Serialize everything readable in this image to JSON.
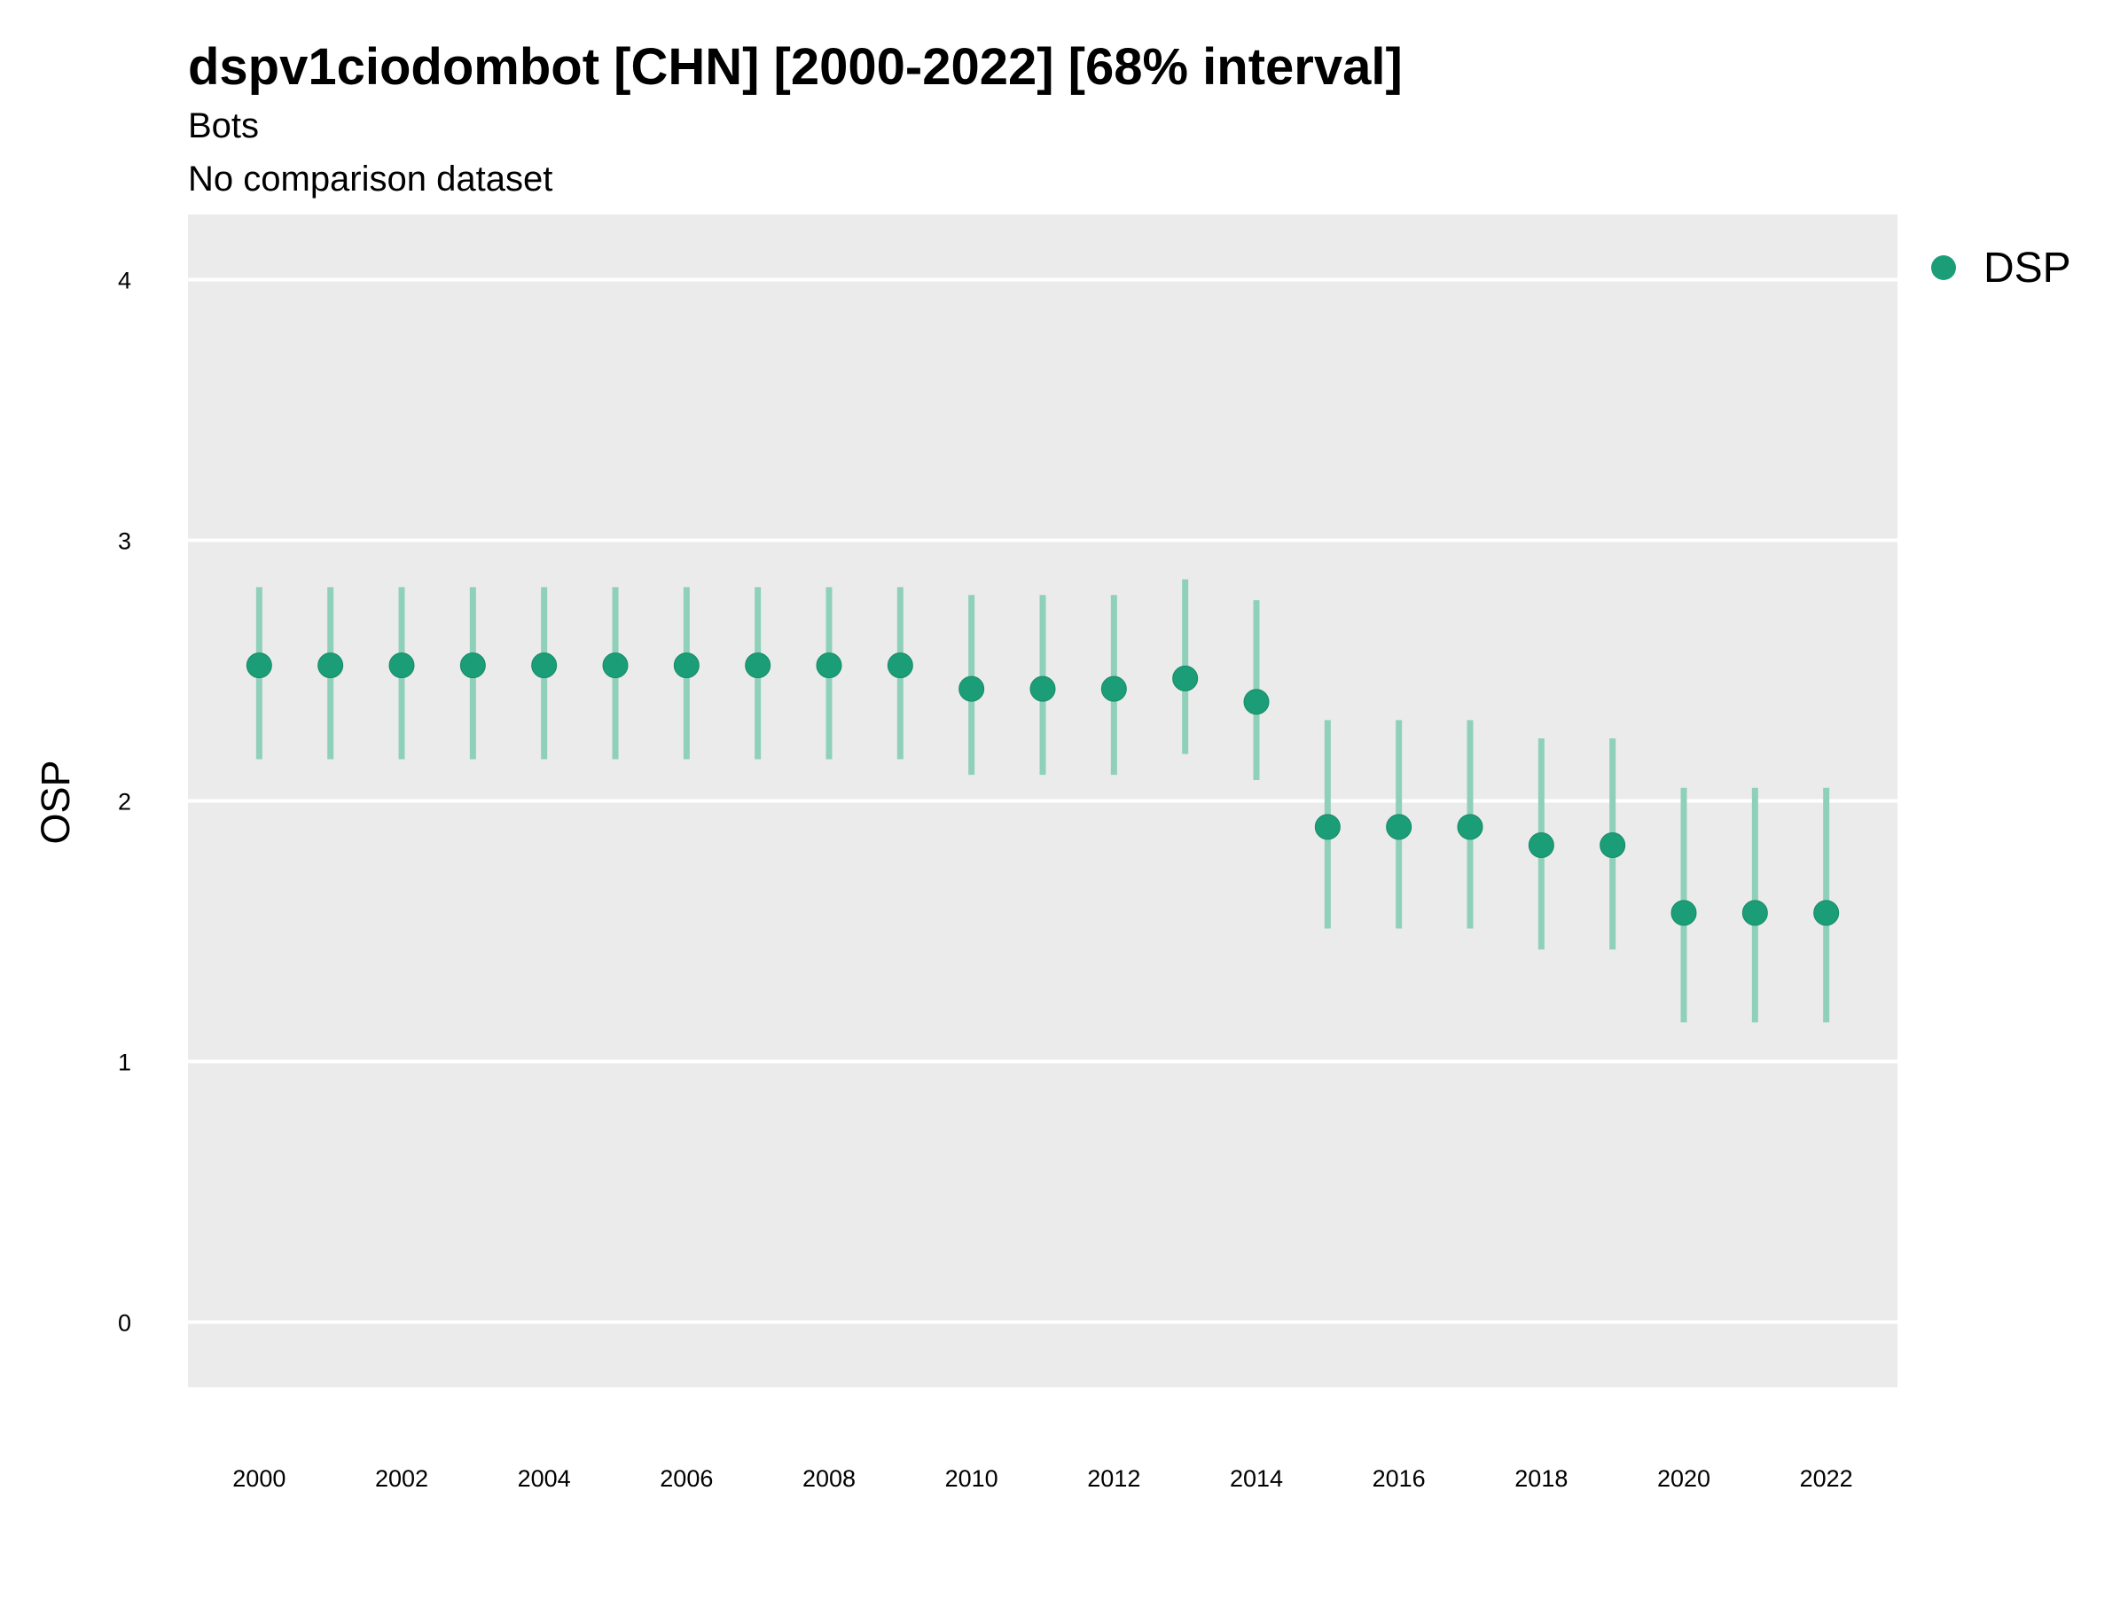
{
  "chart_data": {
    "type": "scatter",
    "title": "dspv1ciodombot [CHN] [2000-2022] [68% interval]",
    "subtitle": "Bots",
    "caption_line": "No comparison dataset",
    "xlabel": "",
    "ylabel": "OSP",
    "ylim": [
      -0.25,
      4.25
    ],
    "yticks": [
      0,
      1,
      2,
      3,
      4
    ],
    "xlim": [
      1999,
      2023
    ],
    "xticks": [
      2000,
      2002,
      2004,
      2006,
      2008,
      2010,
      2012,
      2014,
      2016,
      2018,
      2020,
      2022
    ],
    "grid": true,
    "legend": {
      "position": "right",
      "entries": [
        "DSP"
      ]
    },
    "colors": {
      "series": "#1b9e77",
      "interval": "#8fd0bb",
      "panel": "#ebebeb",
      "grid": "#ffffff"
    },
    "series": [
      {
        "name": "DSP",
        "x": [
          2000,
          2001,
          2002,
          2003,
          2004,
          2005,
          2006,
          2007,
          2008,
          2009,
          2010,
          2011,
          2012,
          2013,
          2014,
          2015,
          2016,
          2017,
          2018,
          2019,
          2020,
          2021,
          2022
        ],
        "y": [
          2.52,
          2.52,
          2.52,
          2.52,
          2.52,
          2.52,
          2.52,
          2.52,
          2.52,
          2.52,
          2.43,
          2.43,
          2.43,
          2.47,
          2.38,
          1.9,
          1.9,
          1.9,
          1.83,
          1.83,
          1.57,
          1.57,
          1.57
        ],
        "lower": [
          2.16,
          2.16,
          2.16,
          2.16,
          2.16,
          2.16,
          2.16,
          2.16,
          2.16,
          2.16,
          2.1,
          2.1,
          2.1,
          2.18,
          2.08,
          1.51,
          1.51,
          1.51,
          1.43,
          1.43,
          1.15,
          1.15,
          1.15
        ],
        "upper": [
          2.82,
          2.82,
          2.82,
          2.82,
          2.82,
          2.82,
          2.82,
          2.82,
          2.82,
          2.82,
          2.79,
          2.79,
          2.79,
          2.85,
          2.77,
          2.31,
          2.31,
          2.31,
          2.24,
          2.24,
          2.05,
          2.05,
          2.05
        ]
      }
    ]
  }
}
